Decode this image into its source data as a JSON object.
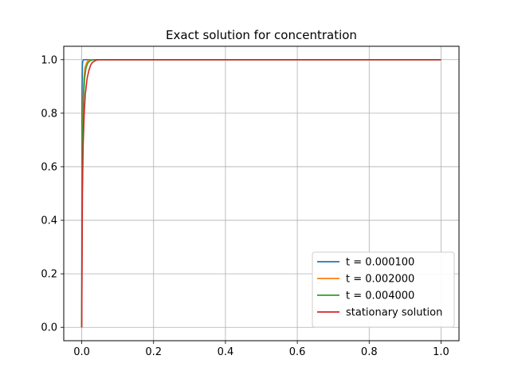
{
  "chart_data": {
    "type": "line",
    "title": "Exact solution for concentration",
    "xlabel": "",
    "ylabel": "",
    "xlim": [
      -0.05,
      1.05
    ],
    "ylim": [
      -0.05,
      1.05
    ],
    "xticks": [
      0.0,
      0.2,
      0.4,
      0.6,
      0.8,
      1.0
    ],
    "xtick_labels": [
      "0.0",
      "0.2",
      "0.4",
      "0.6",
      "0.8",
      "1.0"
    ],
    "yticks": [
      0.0,
      0.2,
      0.4,
      0.6,
      0.8,
      1.0
    ],
    "ytick_labels": [
      "0.0",
      "0.2",
      "0.4",
      "0.6",
      "0.8",
      "1.0"
    ],
    "grid": true,
    "legend_position": "lower-right",
    "series": [
      {
        "name": "t = 0.000100",
        "color": "#1f77b4",
        "x": [
          0.0,
          0.0005,
          0.001,
          0.002,
          0.003,
          0.005,
          0.008,
          1.0
        ],
        "y": [
          0.0,
          0.72,
          0.9,
          0.98,
          0.995,
          1.0,
          1.0,
          1.0
        ]
      },
      {
        "name": "t = 0.002000",
        "color": "#ff7f0e",
        "x": [
          0.0,
          0.001,
          0.002,
          0.004,
          0.006,
          0.009,
          0.014,
          0.02,
          0.03,
          1.0
        ],
        "y": [
          0.0,
          0.55,
          0.72,
          0.86,
          0.93,
          0.97,
          0.99,
          0.998,
          1.0,
          1.0
        ]
      },
      {
        "name": "t = 0.004000",
        "color": "#2ca02c",
        "x": [
          0.0,
          0.001,
          0.003,
          0.005,
          0.008,
          0.012,
          0.018,
          0.025,
          0.035,
          1.0
        ],
        "y": [
          0.0,
          0.45,
          0.74,
          0.85,
          0.93,
          0.97,
          0.99,
          0.997,
          1.0,
          1.0
        ]
      },
      {
        "name": "stationary solution",
        "color": "#d62728",
        "x": [
          0.0,
          0.002,
          0.004,
          0.007,
          0.01,
          0.015,
          0.02,
          0.025,
          0.03,
          0.04,
          0.05,
          1.0
        ],
        "y": [
          0.0,
          0.5,
          0.68,
          0.8,
          0.87,
          0.93,
          0.96,
          0.98,
          0.99,
          0.998,
          1.0,
          1.0
        ]
      }
    ]
  }
}
